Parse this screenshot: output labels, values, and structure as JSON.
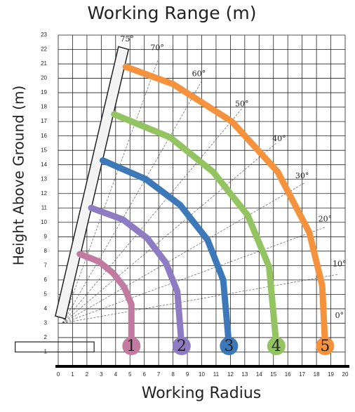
{
  "chart_data": {
    "type": "line",
    "title": "Working Range (m)",
    "x_label": "Working Radius",
    "y_label": "Height Above Ground (m)",
    "xlim": [
      0,
      20
    ],
    "ylim": [
      0,
      23
    ],
    "xticks": [
      0,
      1,
      2,
      3,
      4,
      5,
      6,
      7,
      8,
      9,
      10,
      11,
      12,
      13,
      14,
      15,
      16,
      17,
      18,
      19,
      20
    ],
    "yticks": [
      1,
      2,
      3,
      4,
      5,
      6,
      7,
      8,
      9,
      10,
      11,
      12,
      13,
      14,
      15,
      16,
      17,
      18,
      19,
      20,
      21,
      22,
      23
    ],
    "grid": true,
    "annotations": [
      "75°",
      "70°",
      "60°",
      "50°",
      "40°",
      "30°",
      "20°",
      "10°",
      "0°"
    ],
    "series": [
      {
        "name": "1",
        "color": "#c27ba0",
        "x": [
          1.5,
          2.8,
          3.8,
          4.6,
          5.1,
          5.1
        ],
        "values": [
          7.8,
          7.3,
          6.5,
          5.5,
          4.3,
          1.5
        ]
      },
      {
        "name": "2",
        "color": "#8e7cc3",
        "x": [
          2.3,
          4.5,
          6.2,
          7.5,
          8.3,
          8.6
        ],
        "values": [
          11,
          10.2,
          8.9,
          7.2,
          5.2,
          1.5
        ]
      },
      {
        "name": "3",
        "color": "#3d78b8",
        "x": [
          3.1,
          6.1,
          8.5,
          10.4,
          11.5,
          11.9
        ],
        "values": [
          14.3,
          13,
          11.2,
          8.8,
          6,
          1.5
        ]
      },
      {
        "name": "4",
        "color": "#93c461",
        "x": [
          3.9,
          7.8,
          10.8,
          13.2,
          14.7,
          15.2
        ],
        "values": [
          17.5,
          15.9,
          13.5,
          10.5,
          6.9,
          1.5
        ]
      },
      {
        "name": "5",
        "color": "#f5923e",
        "x": [
          4.7,
          8,
          12.1,
          15.3,
          17.5,
          18.4,
          18.6
        ],
        "values": [
          20.8,
          19.6,
          17,
          13.5,
          9.3,
          5.6,
          1.5
        ]
      }
    ]
  }
}
